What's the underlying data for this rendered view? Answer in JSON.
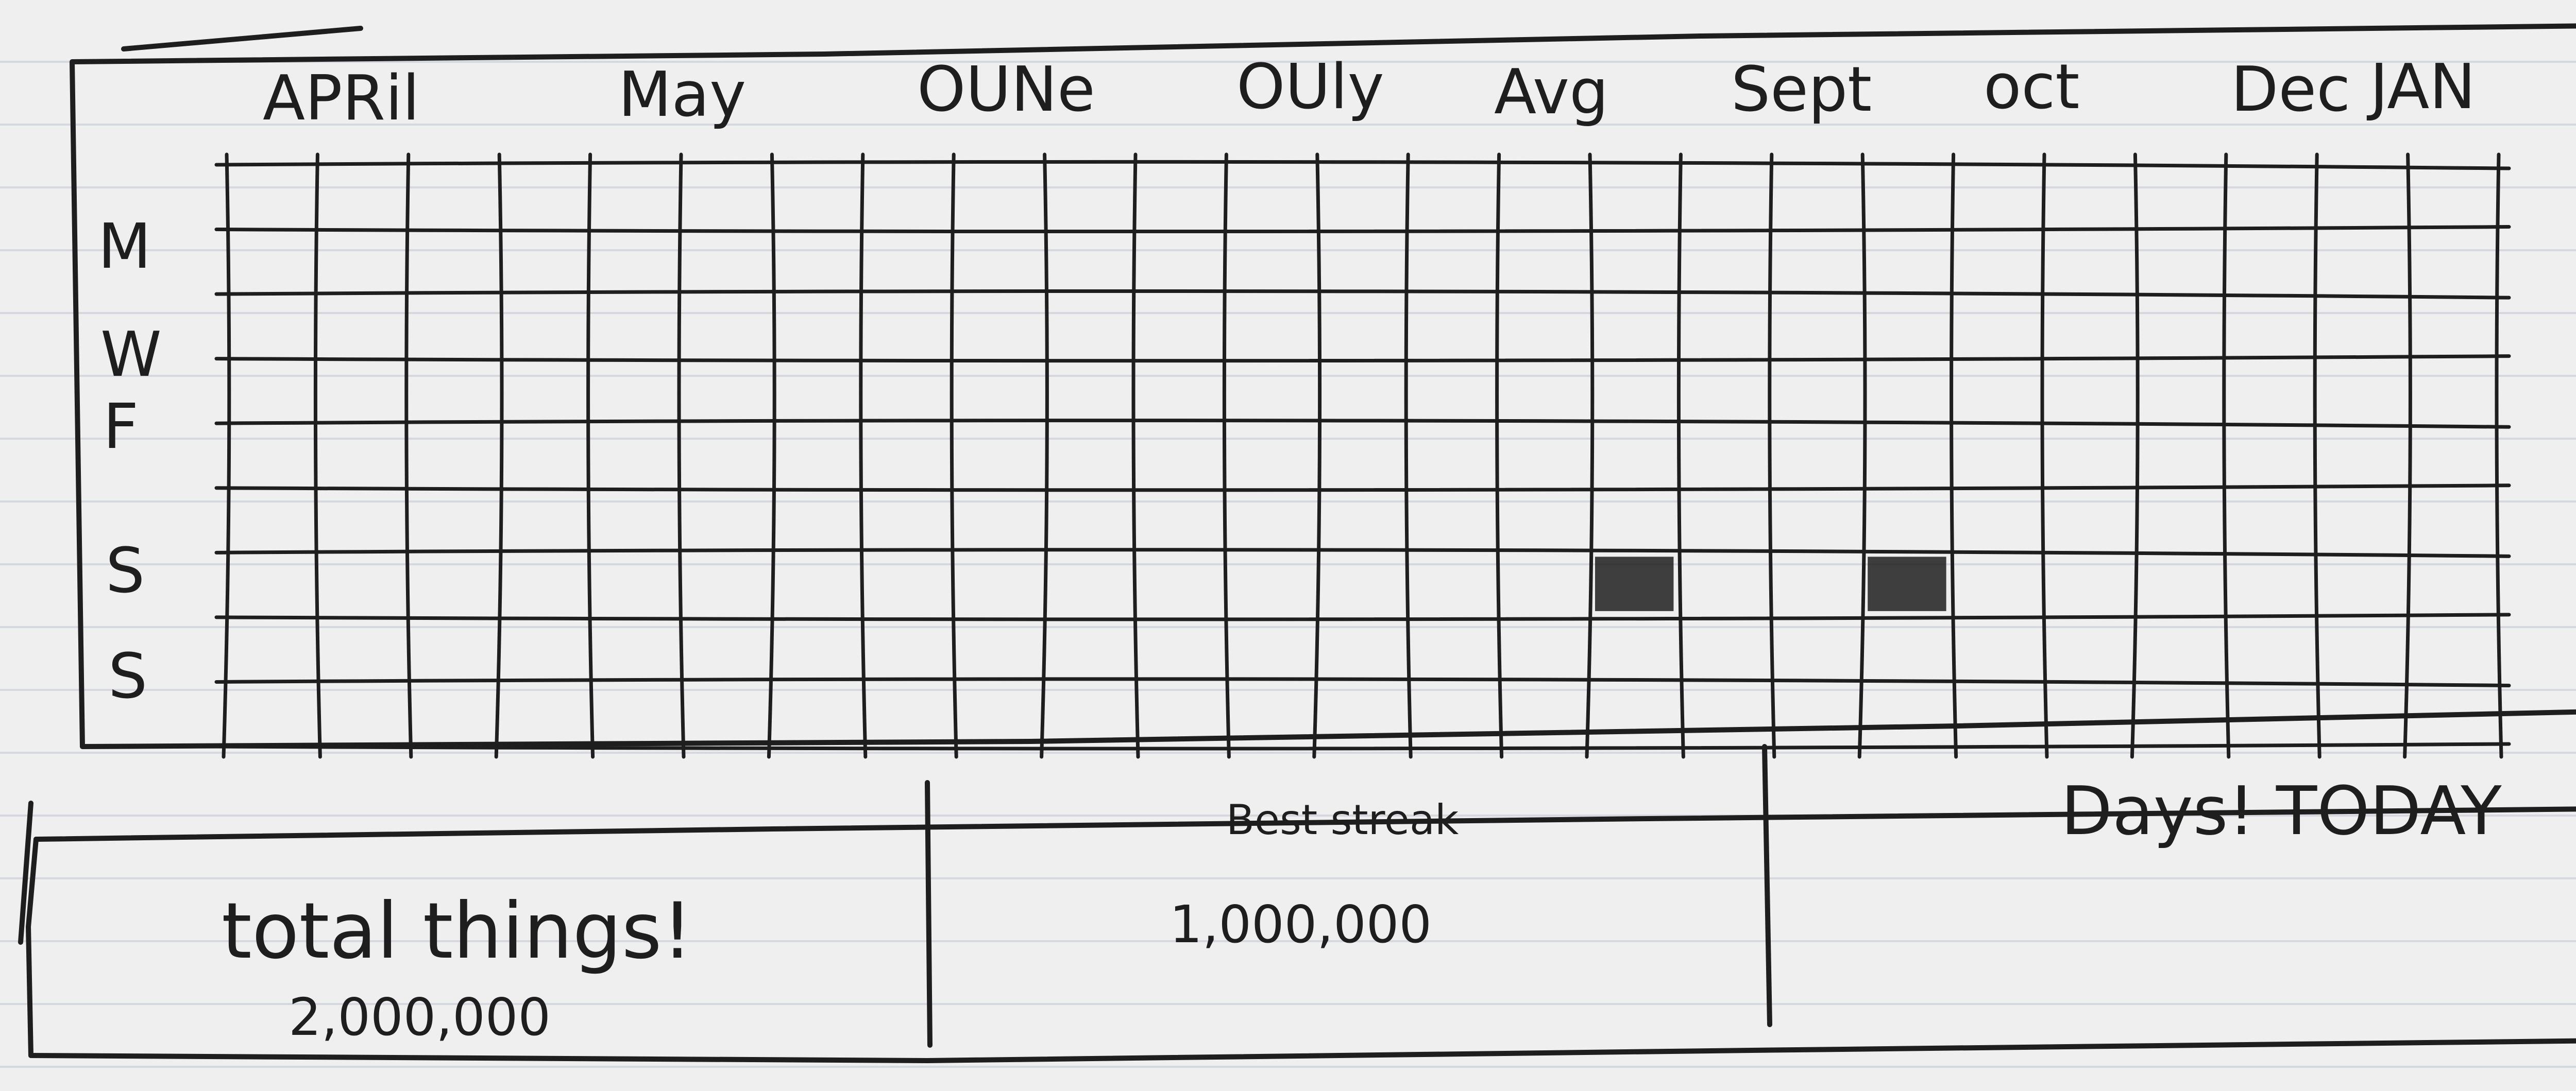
{
  "months": [
    "APRil",
    "May",
    "OUNe",
    "OUly",
    "Avg",
    "Sept",
    "oct",
    "Dec",
    "JAN"
  ],
  "weekday_labels": [
    "M",
    "W",
    "F",
    "S",
    "S"
  ],
  "heatmap": {
    "filled_cells": [
      {
        "week": 15,
        "row": 6
      },
      {
        "week": 18,
        "row": 6
      }
    ]
  },
  "stats": [
    {
      "title": "total things!",
      "value": "2,000,000"
    },
    {
      "title": "Best streak",
      "value": "1,000,000"
    },
    {
      "title": "Days! TODAY",
      "value": ""
    }
  ],
  "colors": {
    "ink": "#1e1e1e",
    "paper": "#efefef",
    "rule": "#8797aa"
  }
}
